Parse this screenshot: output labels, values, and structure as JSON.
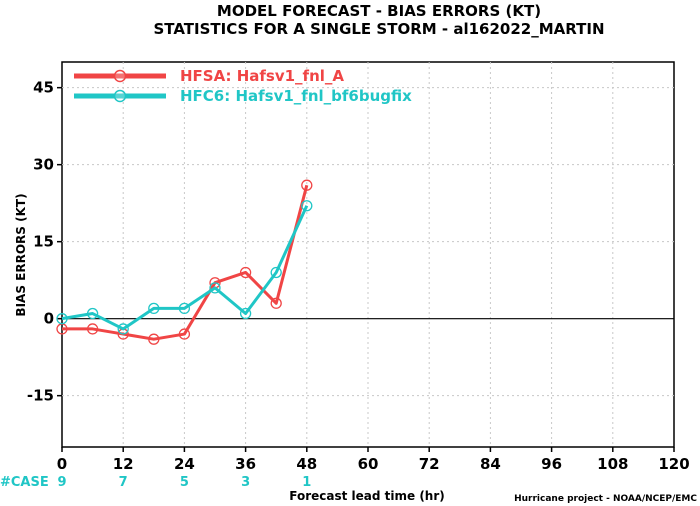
{
  "chart_data": {
    "type": "line",
    "title": "MODEL FORECAST - BIAS ERRORS (KT)",
    "subtitle": "STATISTICS FOR A SINGLE STORM - al162022_MARTIN",
    "xlabel": "Forecast lead time (hr)",
    "ylabel": "BIAS ERRORS (KT)",
    "xlim": [
      0,
      120
    ],
    "ylim": [
      -25,
      50
    ],
    "xticks": [
      "0",
      "12",
      "24",
      "36",
      "48",
      "60",
      "72",
      "84",
      "96",
      "108",
      "120"
    ],
    "yticks": [
      "-15",
      "0",
      "15",
      "30",
      "45"
    ],
    "grid": true,
    "legend_position": "top-left",
    "x": [
      0,
      6,
      12,
      18,
      24,
      30,
      36,
      42,
      48
    ],
    "series": [
      {
        "name": "HFSA: Hafsv1_fnl_A",
        "color": "#f04545",
        "values": [
          -2,
          -2,
          -3,
          -4,
          -3,
          7,
          9,
          3,
          26
        ]
      },
      {
        "name": "HFC6: Hafsv1_fnl_bf6bugfix",
        "color": "#20c6c6",
        "values": [
          0,
          1,
          -2,
          2,
          2,
          6,
          1,
          9,
          22
        ]
      }
    ],
    "cases": {
      "label": "#CASE",
      "color": "#20c6c6",
      "entries": [
        {
          "x": 0,
          "count": "9"
        },
        {
          "x": 12,
          "count": "7"
        },
        {
          "x": 24,
          "count": "5"
        },
        {
          "x": 36,
          "count": "3"
        },
        {
          "x": 48,
          "count": "1"
        }
      ]
    },
    "credit": "Hurricane project - NOAA/NCEP/EMC"
  }
}
